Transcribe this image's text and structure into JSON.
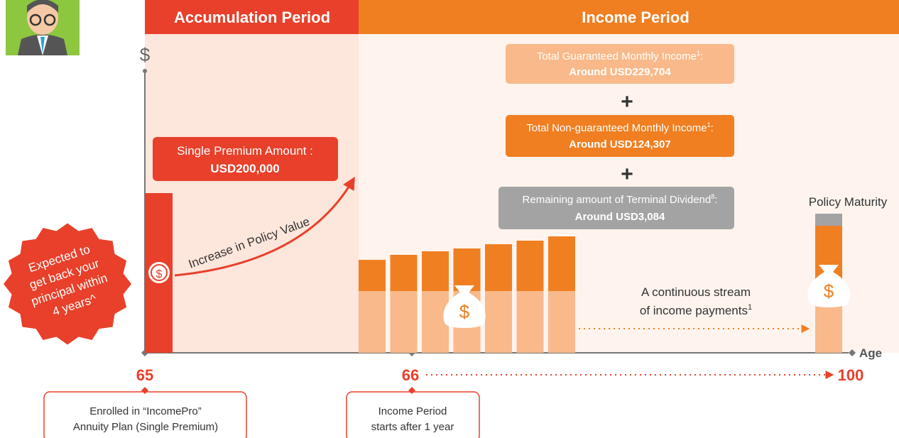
{
  "header": {
    "accumulation": "Accumulation Period",
    "income": "Income Period"
  },
  "axis": {
    "y_symbol": "$",
    "x_label": "Age"
  },
  "premium_box": {
    "label": "Single Premium Amount :",
    "amount": "USD200,000"
  },
  "growth_label": "Increase in Policy Value",
  "income_boxes": [
    {
      "label": "Total Guaranteed Monthly Income",
      "footnote": "1",
      "punct": ":",
      "amount": "Around USD229,704"
    },
    {
      "label": "Total Non-guaranteed Monthly Income",
      "footnote": "1",
      "punct": ":",
      "amount": "Around USD124,307"
    },
    {
      "label": "Remaining amount of Terminal Dividend",
      "footnote": "8",
      "punct": ":",
      "amount": "Around USD3,084"
    }
  ],
  "plus": "+",
  "maturity_label": "Policy Maturity",
  "stream_label": {
    "line1": "A continuous stream",
    "line2": "of income payments",
    "footnote": "1"
  },
  "badge": {
    "lines": [
      "Expected to",
      "get back your",
      "principal within",
      "4 years^"
    ]
  },
  "ages": {
    "start": "65",
    "income_start": "66",
    "end": "100"
  },
  "notes": [
    {
      "lines": [
        "Enrolled in “IncomePro”",
        "Annuity Plan (Single Premium)"
      ]
    },
    {
      "lines": [
        "Income Period",
        "starts after 1 year"
      ]
    }
  ]
}
